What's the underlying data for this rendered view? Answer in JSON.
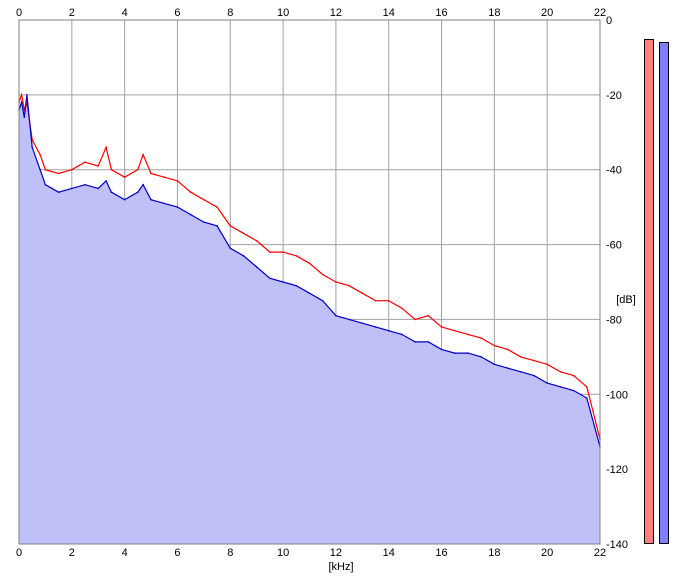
{
  "chart_data": {
    "type": "area",
    "xlabel": "[kHz]",
    "ylabel": "[dB]",
    "xlim": [
      0,
      22
    ],
    "ylim": [
      -140,
      0
    ],
    "x_ticks": [
      0,
      2,
      4,
      6,
      8,
      10,
      12,
      14,
      16,
      18,
      20,
      22
    ],
    "y_ticks": [
      0,
      -20,
      -40,
      -60,
      -80,
      -100,
      -120,
      -140
    ],
    "grid": true,
    "series": [
      {
        "color": "#ff0000",
        "fill": false,
        "x": [
          0,
          0.1,
          0.2,
          0.3,
          0.5,
          0.8,
          1,
          1.5,
          2,
          2.5,
          3,
          3.3,
          3.5,
          4,
          4.5,
          4.7,
          5,
          5.5,
          6,
          6.5,
          7,
          7.5,
          8,
          8.5,
          9,
          9.5,
          10,
          10.5,
          11,
          11.5,
          12,
          12.5,
          13,
          13.5,
          14,
          14.5,
          15,
          15.5,
          16,
          16.5,
          17,
          17.5,
          18,
          18.5,
          19,
          19.5,
          20,
          20.5,
          21,
          21.5,
          22
        ],
        "values": [
          -22,
          -20,
          -24,
          -22,
          -32,
          -36,
          -40,
          -41,
          -40,
          -38,
          -39,
          -34,
          -40,
          -42,
          -40,
          -36,
          -41,
          -42,
          -43,
          -46,
          -48,
          -50,
          -55,
          -57,
          -59,
          -62,
          -62,
          -63,
          -65,
          -68,
          -70,
          -71,
          -73,
          -75,
          -75,
          -77,
          -80,
          -79,
          -82,
          -83,
          -84,
          -85,
          -87,
          -88,
          -90,
          -91,
          -92,
          -94,
          -95,
          -98,
          -112
        ]
      },
      {
        "color": "#0000c0",
        "fill": true,
        "fill_color": "#c0c0f8",
        "x": [
          0,
          0.1,
          0.2,
          0.3,
          0.5,
          0.8,
          1,
          1.5,
          2,
          2.5,
          3,
          3.3,
          3.5,
          4,
          4.5,
          4.7,
          5,
          5.5,
          6,
          6.5,
          7,
          7.5,
          8,
          8.5,
          9,
          9.5,
          10,
          10.5,
          11,
          11.5,
          12,
          12.5,
          13,
          13.5,
          14,
          14.5,
          15,
          15.5,
          16,
          16.5,
          17,
          17.5,
          18,
          18.5,
          19,
          19.5,
          20,
          20.5,
          21,
          21.5,
          22
        ],
        "values": [
          -24,
          -22,
          -26,
          -20,
          -34,
          -40,
          -44,
          -46,
          -45,
          -44,
          -45,
          -43,
          -46,
          -48,
          -46,
          -44,
          -48,
          -49,
          -50,
          -52,
          -54,
          -55,
          -61,
          -63,
          -66,
          -69,
          -70,
          -71,
          -73,
          -75,
          -79,
          -80,
          -81,
          -82,
          -83,
          -84,
          -86,
          -86,
          -88,
          -89,
          -89,
          -90,
          -92,
          -93,
          -94,
          -95,
          -97,
          -98,
          -99,
          -101,
          -114
        ]
      }
    ],
    "level_meters": [
      {
        "color": "#ff8080",
        "level_db": -5
      },
      {
        "color": "#8080ff",
        "level_db": -6
      }
    ]
  }
}
